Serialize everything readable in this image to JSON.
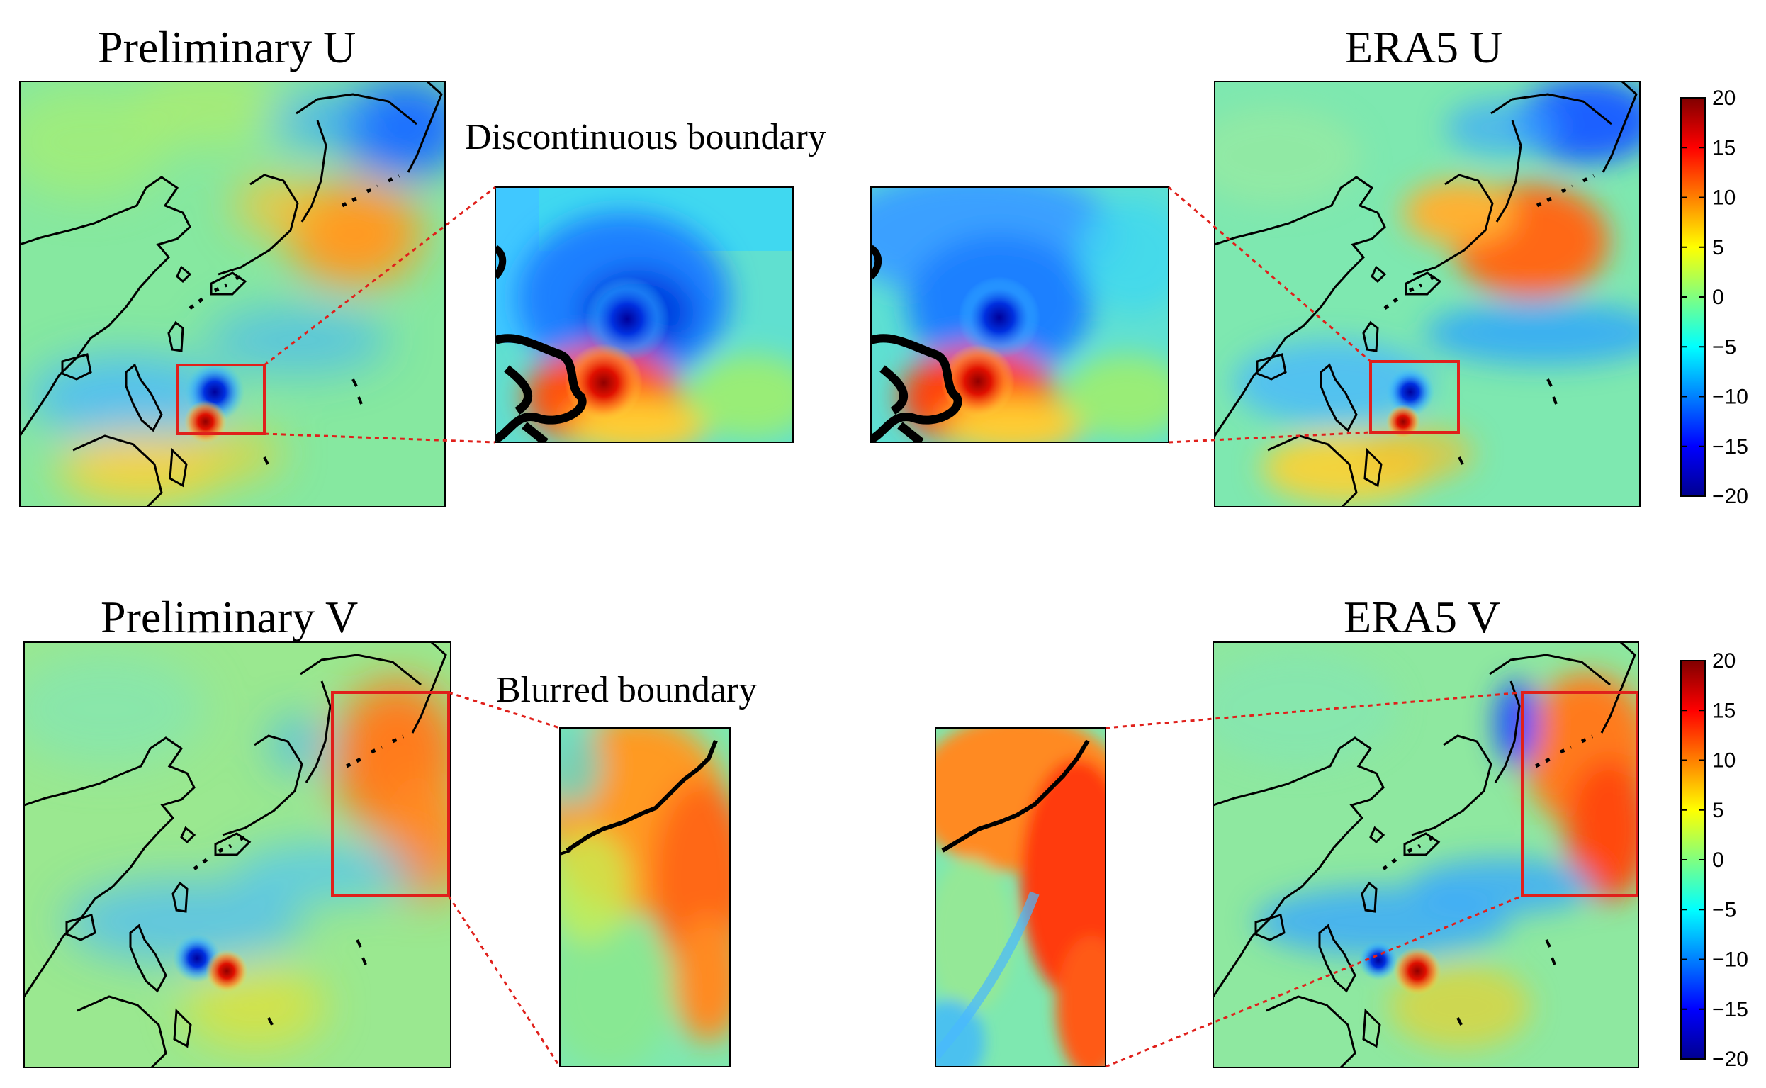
{
  "titles": {
    "prelim_u": "Preliminary U",
    "era5_u": "ERA5 U",
    "prelim_v": "Preliminary V",
    "era5_v": "ERA5 V"
  },
  "annotations": {
    "top": "Discontinuous boundary",
    "bottom": "Blurred boundary"
  },
  "colorbar": {
    "ticks": [
      "20",
      "15",
      "10",
      "5",
      "0",
      "−5",
      "−10",
      "−15",
      "−20"
    ],
    "colormap": [
      "#00008f",
      "#0000ff",
      "#0080ff",
      "#00ffff",
      "#80ff80",
      "#ffff00",
      "#ff8000",
      "#ff0000",
      "#800000"
    ]
  },
  "colors": {
    "highlight_box": "#e0201b",
    "coastline": "#000000",
    "background_field": "#7fe6a8"
  }
}
